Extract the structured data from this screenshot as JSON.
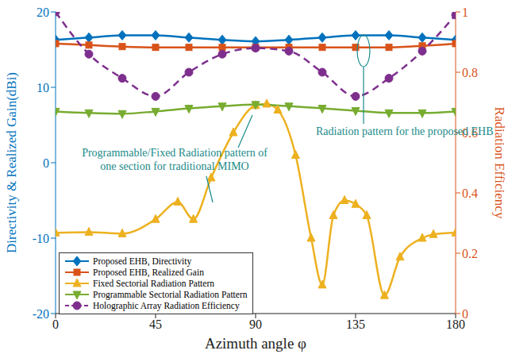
{
  "chart_data": {
    "type": "line",
    "xlabel": "Azimuth angle φ",
    "ylabel": "Directivity & Realized Gain(dBi)",
    "y2label": "Radiation Efficiency",
    "xlim": [
      0,
      180
    ],
    "xticks": [
      0,
      45,
      90,
      135,
      180
    ],
    "ylim": [
      -20,
      20
    ],
    "yticks": [
      -20,
      -10,
      0,
      10,
      20
    ],
    "y2lim": [
      0,
      1
    ],
    "y2ticks": [
      0,
      0.2,
      0.4,
      0.6,
      0.8,
      1
    ],
    "grid": false,
    "legend": "lower left",
    "annotations": [
      "Programmable/Fixed Radiation pattern of one section for traditional MIMO",
      "Radiation pattern for the proposed EHB"
    ],
    "series": [
      {
        "name": "Proposed EHB, Directivity",
        "color": "#0072BD",
        "marker": "diamond",
        "line_style": "solid",
        "x": [
          0,
          15,
          30,
          45,
          60,
          75,
          90,
          105,
          120,
          135,
          150,
          165,
          180
        ],
        "values": [
          16.3,
          16.6,
          16.9,
          16.9,
          16.6,
          16.3,
          16.1,
          16.3,
          16.6,
          16.9,
          16.9,
          16.6,
          16.3
        ]
      },
      {
        "name": "Proposed EHB, Realized Gain",
        "color": "#D95319",
        "marker": "square",
        "line_style": "solid",
        "x": [
          0,
          15,
          30,
          45,
          60,
          75,
          90,
          105,
          120,
          135,
          150,
          165,
          180
        ],
        "values": [
          15.8,
          15.6,
          15.4,
          15.3,
          15.3,
          15.3,
          15.3,
          15.3,
          15.3,
          15.3,
          15.3,
          15.5,
          15.8
        ]
      },
      {
        "name": "Fixed Sectorial Radiation Pattern",
        "color": "#EDB120",
        "marker": "triangle",
        "line_style": "solid",
        "x": [
          0,
          15,
          30,
          45,
          55,
          62,
          70,
          80,
          90,
          95,
          100,
          108,
          115,
          120,
          125,
          130,
          135,
          140,
          148,
          155,
          165,
          170,
          180
        ],
        "values": [
          -9.3,
          -9.2,
          -9.4,
          -7.5,
          -5.2,
          -7.5,
          -2,
          4,
          7.6,
          7.8,
          7,
          1,
          -10,
          -16.2,
          -7,
          -5,
          -5.5,
          -7,
          -17.6,
          -12.5,
          -10,
          -9.5,
          -9.3
        ]
      },
      {
        "name": "Programmable Sectorial Radiation Pattern",
        "color": "#77AC30",
        "marker": "triangle-down",
        "line_style": "solid",
        "x": [
          0,
          15,
          30,
          45,
          60,
          75,
          90,
          105,
          120,
          135,
          150,
          165,
          180
        ],
        "values": [
          6.8,
          6.6,
          6.5,
          6.8,
          7.2,
          7.5,
          7.7,
          7.5,
          7.2,
          6.9,
          6.6,
          6.6,
          6.8
        ]
      },
      {
        "name": "Holographic Array Radiation Efficiency",
        "color": "#7E2F8E",
        "marker": "circle",
        "line_style": "dashed",
        "axis": "y2",
        "x": [
          0,
          15,
          30,
          45,
          60,
          75,
          90,
          105,
          120,
          135,
          150,
          165,
          180
        ],
        "values": [
          1,
          0.86,
          0.78,
          0.72,
          0.8,
          0.86,
          0.88,
          0.87,
          0.8,
          0.72,
          0.78,
          0.87,
          0.99
        ]
      }
    ]
  }
}
